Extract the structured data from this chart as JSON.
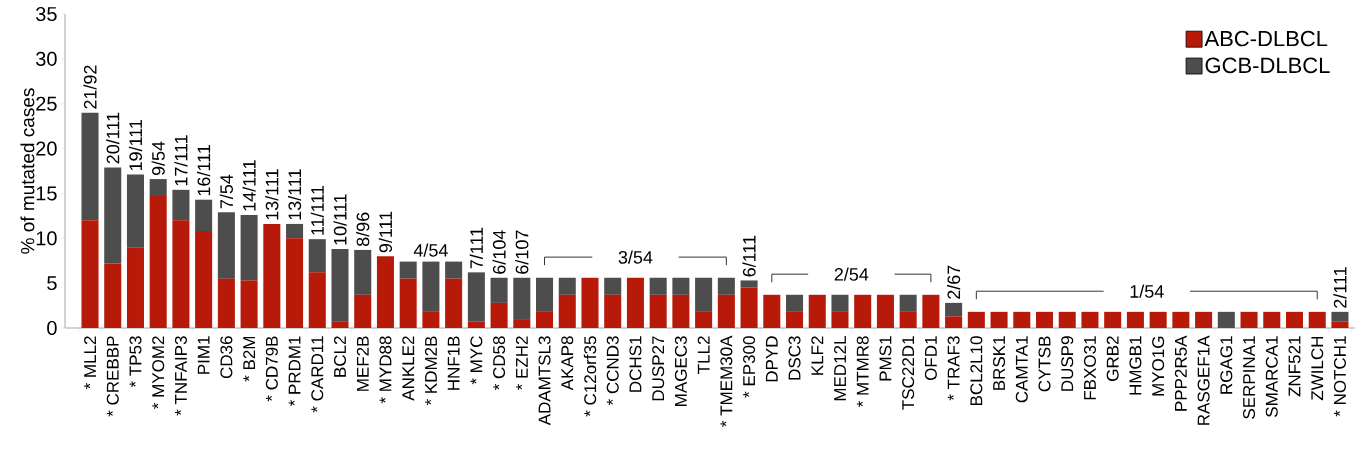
{
  "chart_data": {
    "type": "bar",
    "stacked": true,
    "ylabel": "% of mutated cases",
    "categories": [
      "* MLL2",
      "* CREBBP",
      "* TP53",
      "* MYOM2",
      "* TNFAIP3",
      "PIM1",
      "CD36",
      "* B2M",
      "* CD79B",
      "* PRDM1",
      "* CARD11",
      "BCL2",
      "MEF2B",
      "* MYD88",
      "ANKLE2",
      "* KDM2B",
      "HNF1B",
      "* MYC",
      "* CD58",
      "* EZH2",
      "ADAMTSL3",
      "AKAP8",
      "* C12orf35",
      "* CCND3",
      "DCHS1",
      "DUSP27",
      "MAGEC3",
      "TLL2",
      "* TMEM30A",
      "* EP300",
      "DPYD",
      "DSC3",
      "KLF2",
      "MED12L",
      "* MTMR8",
      "PMS1",
      "TSC22D1",
      "OFD1",
      "* TRAF3",
      "BCL2L10",
      "BRSK1",
      "CAMTA1",
      "CYTSB",
      "DUSP9",
      "FBXO31",
      "GRB2",
      "HMGB1",
      "MYO1G",
      "PPP2R5A",
      "RASGEF1A",
      "RGAG1",
      "SERPINA1",
      "SMARCA1",
      "ZNF521",
      "ZWILCH",
      "* NOTCH1"
    ],
    "series": [
      {
        "name": "ABC-DLBCL",
        "color": "#b81a0a",
        "values": [
          12,
          7.2,
          9,
          14.7,
          12,
          10.8,
          5.5,
          5.3,
          11.6,
          10,
          6.2,
          0.7,
          3.7,
          8,
          5.5,
          1.8,
          5.5,
          0.7,
          2.8,
          0.9,
          1.8,
          3.7,
          5.6,
          3.7,
          5.6,
          3.7,
          3.7,
          1.8,
          3.7,
          4.5,
          3.7,
          1.8,
          3.7,
          1.8,
          3.7,
          3.7,
          1.8,
          3.7,
          1.3,
          1.8,
          1.8,
          1.8,
          1.8,
          1.8,
          1.8,
          1.8,
          1.8,
          1.8,
          1.8,
          1.8,
          0,
          1.8,
          1.8,
          1.8,
          1.8,
          0.7
        ]
      },
      {
        "name": "GCB-DLBCL",
        "color": "#4d4d4d",
        "values": [
          12,
          10.7,
          8.1,
          1.9,
          3.4,
          3.5,
          7.4,
          7.3,
          0,
          1.6,
          3.7,
          8.1,
          5,
          0,
          1.9,
          5.6,
          1.9,
          5.5,
          2.8,
          4.7,
          3.8,
          1.9,
          0,
          1.9,
          0,
          1.9,
          1.9,
          3.8,
          1.9,
          0.8,
          0,
          1.9,
          0,
          1.9,
          0,
          0,
          1.9,
          0,
          1.5,
          0,
          0,
          0,
          0,
          0,
          0,
          0,
          0,
          0,
          0,
          0,
          1.8,
          0,
          0,
          0,
          0,
          1.1
        ]
      }
    ],
    "totals": [
      "21/92",
      "20/111",
      "19/111",
      "9/54",
      "17/111",
      "16/111",
      "7/54",
      "14/111",
      "13/111",
      "13/111",
      "11/111",
      "10/111",
      "8/96",
      "9/111",
      null,
      null,
      null,
      "7/111",
      "6/104",
      "6/107",
      null,
      null,
      null,
      null,
      null,
      null,
      null,
      null,
      null,
      "6/111",
      null,
      null,
      null,
      null,
      null,
      null,
      null,
      null,
      "2/67",
      null,
      null,
      null,
      null,
      null,
      null,
      null,
      null,
      null,
      null,
      null,
      null,
      null,
      null,
      null,
      null,
      "2/111"
    ],
    "ylim": [
      0,
      35
    ],
    "yticks": [
      0,
      5,
      10,
      15,
      20,
      25,
      30,
      35
    ],
    "legend": "top right",
    "annotations": [
      "4/54",
      "3/54",
      "2/54",
      "1/54"
    ]
  }
}
